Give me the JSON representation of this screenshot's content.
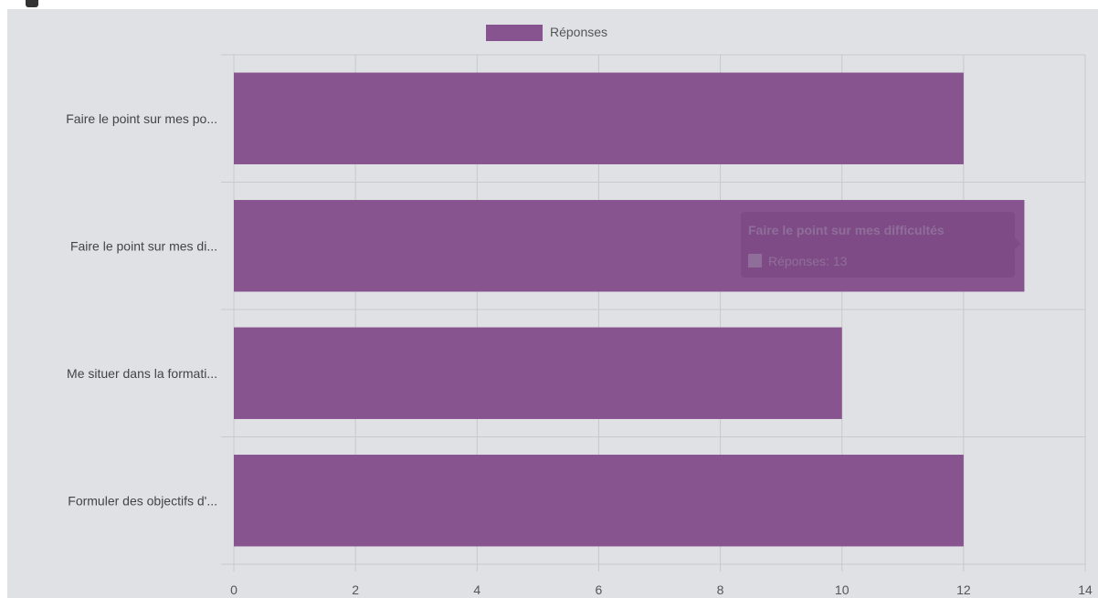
{
  "chart_data": {
    "type": "bar",
    "orientation": "horizontal",
    "categories": [
      "Faire le point sur mes po...",
      "Faire le point sur mes di...",
      "Me situer dans la formati...",
      "Formuler des objectifs d'..."
    ],
    "series": [
      {
        "name": "Réponses",
        "values": [
          12,
          13,
          10,
          12
        ],
        "color": "#87548f"
      }
    ],
    "xlim": [
      0,
      14
    ],
    "xticks": [
      "0",
      "2",
      "4",
      "6",
      "8",
      "10",
      "12",
      "14"
    ],
    "grid": true,
    "legend": "top-center"
  },
  "tooltip": {
    "title": "Faire le point sur mes difficultés",
    "series_name": "Réponses",
    "value": "13",
    "body": "Réponses: 13"
  },
  "colors": {
    "background": "#dfe1e5",
    "grid": "#c8c9cc",
    "bar": "#87548f",
    "tooltip_bg": "#7d4b85"
  }
}
